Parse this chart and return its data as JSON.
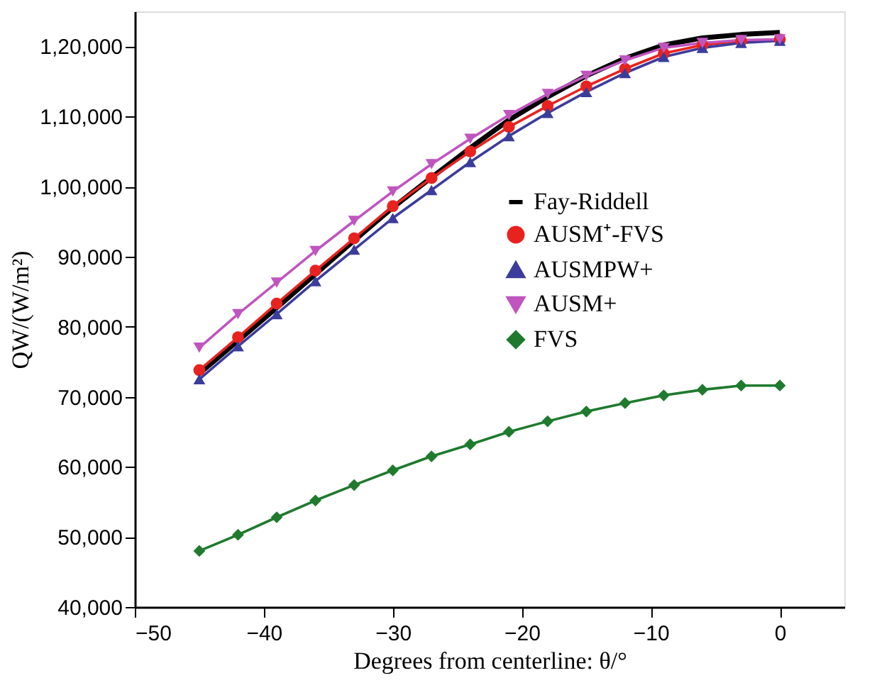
{
  "chart_data": {
    "type": "line",
    "xlabel": "Degrees from centerline: θ/°",
    "ylabel": "QW/(W/m²)",
    "x": [
      -45,
      -42,
      -39,
      -36,
      -33,
      -30,
      -27,
      -24,
      -21,
      -18,
      -15,
      -12,
      -9,
      -6,
      -3,
      0
    ],
    "series": [
      {
        "name": "Fay-Riddell",
        "color": "#000000",
        "marker": "none",
        "values": [
          73300,
          78000,
          82700,
          87500,
          92300,
          97000,
          101300,
          105500,
          109500,
          112800,
          115800,
          118300,
          120200,
          121200,
          121700,
          122000
        ]
      },
      {
        "name": "AUSM⁺-FVS",
        "color": "#e8231f",
        "marker": "circle",
        "values": [
          73800,
          78500,
          83300,
          88000,
          92600,
          97200,
          101200,
          105000,
          108500,
          111500,
          114300,
          116800,
          119000,
          120200,
          120800,
          121000
        ]
      },
      {
        "name": "AUSMPW+",
        "color": "#3c3c9c",
        "marker": "triangle",
        "values": [
          72500,
          77200,
          81800,
          86500,
          91000,
          95500,
          99500,
          103500,
          107200,
          110500,
          113500,
          116200,
          118500,
          119800,
          120500,
          120800
        ]
      },
      {
        "name": "AUSM+",
        "color": "#c055c0",
        "marker": "triangle-down",
        "values": [
          77000,
          81800,
          86300,
          90800,
          95100,
          99300,
          103200,
          106800,
          110200,
          113200,
          115800,
          118000,
          119800,
          120500,
          120900,
          121000
        ]
      },
      {
        "name": "FVS",
        "color": "#1f7a2e",
        "marker": "diamond",
        "values": [
          48000,
          50300,
          52800,
          55200,
          57400,
          59500,
          61500,
          63200,
          65000,
          66500,
          67900,
          69100,
          70200,
          71000,
          71600,
          71600
        ]
      }
    ],
    "xlim": [
      -50,
      5
    ],
    "xticks": [
      -50,
      -40,
      -30,
      -20,
      -10,
      0
    ],
    "ylim": [
      40000,
      125000
    ],
    "yticks": [
      {
        "value": 40000,
        "label": "40,000"
      },
      {
        "value": 50000,
        "label": "50,000"
      },
      {
        "value": 60000,
        "label": "60,000"
      },
      {
        "value": 70000,
        "label": "70,000"
      },
      {
        "value": 80000,
        "label": "80,000"
      },
      {
        "value": 90000,
        "label": "90,000"
      },
      {
        "value": 100000,
        "label": "1,00,000"
      },
      {
        "value": 110000,
        "label": "1,10,000"
      },
      {
        "value": 120000,
        "label": "1,20,000"
      }
    ],
    "grid": false,
    "legend": "right",
    "line_style": "solid"
  }
}
